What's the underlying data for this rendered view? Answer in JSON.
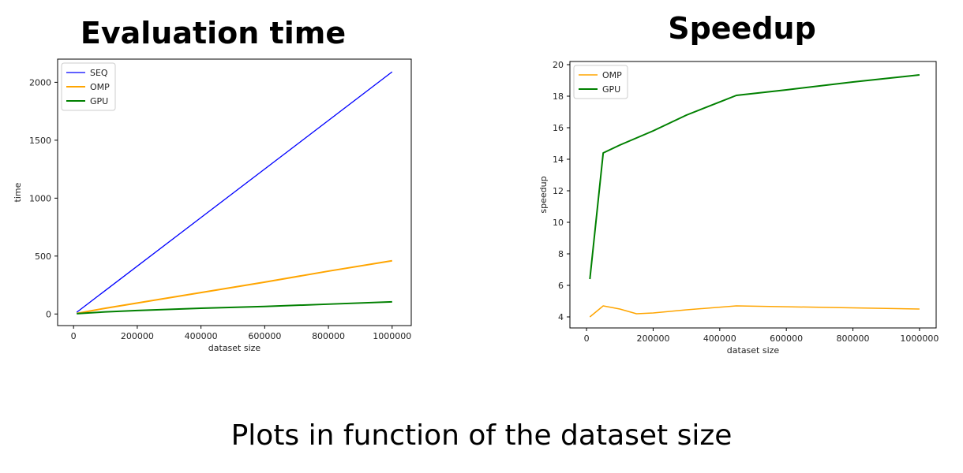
{
  "caption": "Plots in function of the dataset size",
  "chart_data": [
    {
      "type": "line",
      "title": "Evaluation time",
      "xlabel": "dataset size",
      "ylabel": "time",
      "xlim": [
        -50000,
        1060000
      ],
      "ylim": [
        -100,
        2200
      ],
      "xticks": [
        0,
        200000,
        400000,
        600000,
        800000,
        1000000
      ],
      "yticks": [
        0,
        500,
        1000,
        1500,
        2000
      ],
      "legend_position": "top-left",
      "series": [
        {
          "name": "SEQ",
          "color": "#0000ff",
          "width": 1.3,
          "x": [
            10000,
            1000000
          ],
          "y": [
            15,
            2090
          ]
        },
        {
          "name": "OMP",
          "color": "#ffa500",
          "width": 2,
          "x": [
            10000,
            50000,
            100000,
            200000,
            400000,
            600000,
            800000,
            1000000
          ],
          "y": [
            5,
            25,
            50,
            95,
            185,
            275,
            370,
            460
          ]
        },
        {
          "name": "GPU",
          "color": "#008000",
          "width": 2,
          "x": [
            10000,
            50000,
            100000,
            200000,
            400000,
            600000,
            800000,
            1000000
          ],
          "y": [
            3,
            10,
            18,
            30,
            50,
            65,
            85,
            105
          ]
        }
      ]
    },
    {
      "type": "line",
      "title": "Speedup",
      "xlabel": "dataset size",
      "ylabel": "speedup",
      "xlim": [
        -50000,
        1050000
      ],
      "ylim": [
        3.3,
        20.2
      ],
      "xticks": [
        0,
        200000,
        400000,
        600000,
        800000,
        1000000
      ],
      "yticks": [
        4,
        6,
        8,
        10,
        12,
        14,
        16,
        18,
        20
      ],
      "legend_position": "top-left",
      "series": [
        {
          "name": "OMP",
          "color": "#ffa500",
          "width": 1.5,
          "x": [
            10000,
            50000,
            100000,
            150000,
            200000,
            300000,
            450000,
            1000000
          ],
          "y": [
            4.0,
            4.7,
            4.5,
            4.2,
            4.25,
            4.45,
            4.7,
            4.5
          ]
        },
        {
          "name": "GPU",
          "color": "#008000",
          "width": 2,
          "x": [
            10000,
            50000,
            100000,
            200000,
            300000,
            450000,
            600000,
            800000,
            1000000
          ],
          "y": [
            6.4,
            14.4,
            14.9,
            15.8,
            16.8,
            18.05,
            18.4,
            18.9,
            19.35
          ]
        }
      ]
    }
  ]
}
